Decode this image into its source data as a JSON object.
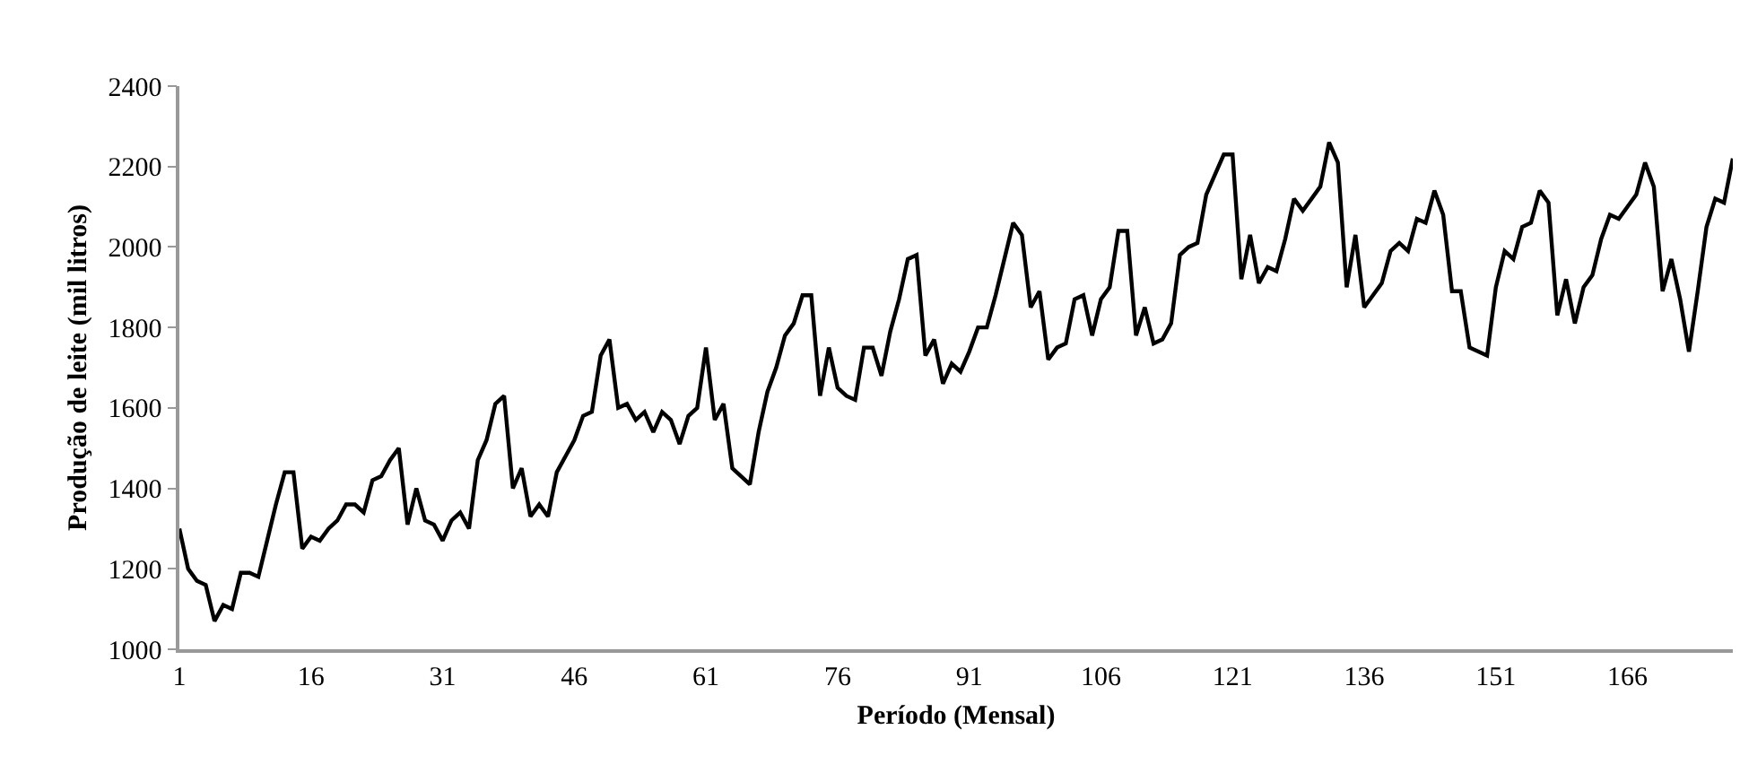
{
  "chart_data": {
    "type": "line",
    "xlabel": "Período (Mensal)",
    "ylabel": "Produção de leite (mil litros)",
    "x": [
      1,
      2,
      3,
      4,
      5,
      6,
      7,
      8,
      9,
      10,
      11,
      12,
      13,
      14,
      15,
      16,
      17,
      18,
      19,
      20,
      21,
      22,
      23,
      24,
      25,
      26,
      27,
      28,
      29,
      30,
      31,
      32,
      33,
      34,
      35,
      36,
      37,
      38,
      39,
      40,
      41,
      42,
      43,
      44,
      45,
      46,
      47,
      48,
      49,
      50,
      51,
      52,
      53,
      54,
      55,
      56,
      57,
      58,
      59,
      60,
      61,
      62,
      63,
      64,
      65,
      66,
      67,
      68,
      69,
      70,
      71,
      72,
      73,
      74,
      75,
      76,
      77,
      78,
      79,
      80,
      81,
      82,
      83,
      84,
      85,
      86,
      87,
      88,
      89,
      90,
      91,
      92,
      93,
      94,
      95,
      96,
      97,
      98,
      99,
      100,
      101,
      102,
      103,
      104,
      105,
      106,
      107,
      108,
      109,
      110,
      111,
      112,
      113,
      114,
      115,
      116,
      117,
      118,
      119,
      120,
      121,
      122,
      123,
      124,
      125,
      126,
      127,
      128,
      129,
      130,
      131,
      132,
      133,
      134,
      135,
      136,
      137,
      138,
      139,
      140,
      141,
      142,
      143,
      144,
      145,
      146,
      147,
      148,
      149,
      150,
      151,
      152,
      153,
      154,
      155,
      156,
      157,
      158,
      159,
      160,
      161,
      162,
      163,
      164,
      165,
      166,
      167,
      168,
      169,
      170,
      171,
      172,
      173,
      174,
      175,
      176,
      177,
      178
    ],
    "series": [
      {
        "color": "#000000",
        "values": [
          1300,
          1200,
          1170,
          1160,
          1070,
          1110,
          1100,
          1190,
          1190,
          1180,
          1270,
          1360,
          1440,
          1440,
          1250,
          1280,
          1270,
          1300,
          1320,
          1360,
          1360,
          1340,
          1420,
          1430,
          1470,
          1500,
          1310,
          1400,
          1320,
          1310,
          1270,
          1320,
          1340,
          1300,
          1470,
          1520,
          1610,
          1630,
          1400,
          1450,
          1330,
          1360,
          1330,
          1440,
          1480,
          1520,
          1580,
          1590,
          1730,
          1770,
          1600,
          1610,
          1570,
          1590,
          1540,
          1590,
          1570,
          1510,
          1580,
          1600,
          1750,
          1570,
          1610,
          1450,
          1430,
          1410,
          1540,
          1640,
          1700,
          1780,
          1810,
          1880,
          1880,
          1630,
          1750,
          1650,
          1630,
          1620,
          1750,
          1750,
          1680,
          1790,
          1870,
          1970,
          1980,
          1730,
          1770,
          1660,
          1710,
          1690,
          1740,
          1800,
          1800,
          1880,
          1970,
          2060,
          2030,
          1850,
          1890,
          1720,
          1750,
          1760,
          1870,
          1880,
          1780,
          1870,
          1900,
          2040,
          2040,
          1780,
          1850,
          1760,
          1770,
          1810,
          1980,
          2000,
          2010,
          2130,
          2180,
          2230,
          2230,
          1920,
          2030,
          1910,
          1950,
          1940,
          2020,
          2120,
          2090,
          2120,
          2150,
          2260,
          2210,
          1900,
          2030,
          1850,
          1880,
          1910,
          1990,
          2010,
          1990,
          2070,
          2060,
          2140,
          2080,
          1890,
          1890,
          1750,
          1740,
          1730,
          1900,
          1990,
          1970,
          2050,
          2060,
          2140,
          2110,
          1830,
          1920,
          1810,
          1900,
          1930,
          2020,
          2080,
          2070,
          2100,
          2130,
          2210,
          2150,
          1890,
          1970,
          1870,
          1740,
          1890,
          2050,
          2120,
          2110,
          2220
        ]
      }
    ],
    "xlim": [
      1,
      178
    ],
    "xticks": [
      1,
      16,
      31,
      46,
      61,
      76,
      91,
      106,
      121,
      136,
      151,
      166
    ],
    "ylim": [
      1000,
      2400
    ],
    "yticks": [
      1000,
      1200,
      1400,
      1600,
      1800,
      2000,
      2200,
      2400
    ],
    "marker": "none",
    "line_style": "solid"
  }
}
